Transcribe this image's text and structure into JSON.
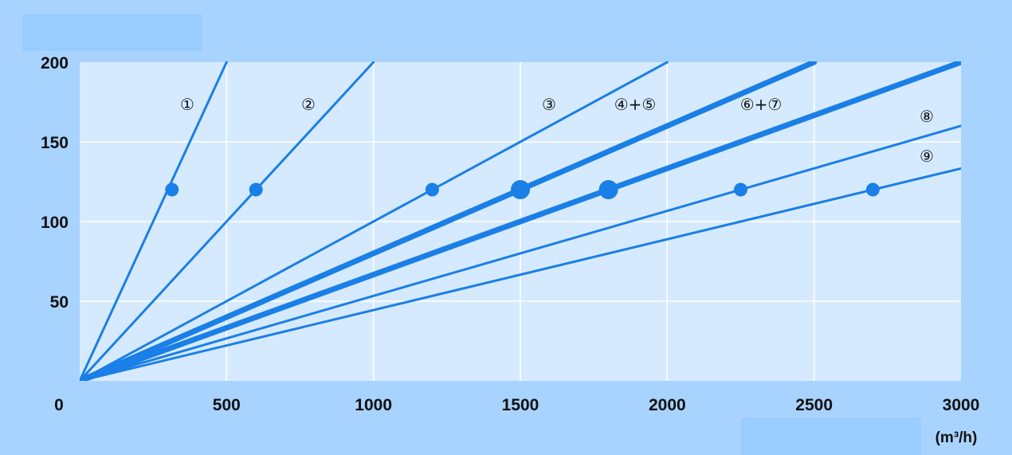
{
  "colors": {
    "outer_bg": "#a9d3ff",
    "plot_bg": "#d6eaff",
    "grid": "#ffffff",
    "line": "#1a7fe6",
    "masked_box": "#99ccff"
  },
  "chart_data": {
    "type": "line",
    "title": "",
    "xlabel": "(m³/h)",
    "ylabel": "",
    "xlim": [
      0,
      3000
    ],
    "ylim": [
      0,
      200
    ],
    "x_ticks": [
      "0",
      "500",
      "1000",
      "1500",
      "2000",
      "2500",
      "3000"
    ],
    "y_ticks": [
      "50",
      "100",
      "150",
      "200"
    ],
    "grid": true,
    "series": [
      {
        "name": "①",
        "points": [
          [
            0,
            0
          ],
          [
            500,
            200
          ]
        ],
        "marker": [
          314,
          120
        ],
        "weight": "thin"
      },
      {
        "name": "②",
        "points": [
          [
            0,
            0
          ],
          [
            1000,
            200
          ]
        ],
        "marker": [
          600,
          120
        ],
        "weight": "thin"
      },
      {
        "name": "③",
        "points": [
          [
            0,
            0
          ],
          [
            2000,
            200
          ]
        ],
        "marker": [
          1200,
          120
        ],
        "weight": "thin"
      },
      {
        "name": "④+⑤",
        "points": [
          [
            0,
            0
          ],
          [
            2500,
            200
          ]
        ],
        "marker": [
          1500,
          120
        ],
        "weight": "thick"
      },
      {
        "name": "⑥+⑦",
        "points": [
          [
            0,
            0
          ],
          [
            3000,
            200
          ]
        ],
        "marker": [
          1800,
          120
        ],
        "weight": "thick"
      },
      {
        "name": "⑧",
        "points": [
          [
            0,
            0
          ],
          [
            3000,
            160
          ]
        ],
        "marker": [
          2250,
          120
        ],
        "weight": "thin"
      },
      {
        "name": "⑨",
        "points": [
          [
            0,
            0
          ],
          [
            3000,
            133.3
          ]
        ],
        "marker": [
          2700,
          120
        ],
        "weight": "thin"
      }
    ]
  }
}
